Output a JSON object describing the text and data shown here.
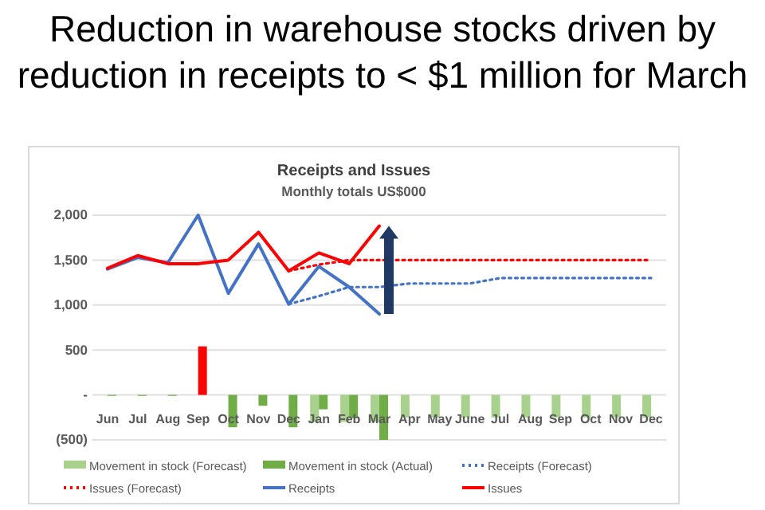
{
  "chart_data": {
    "type": "bar",
    "title": "Reduction in warehouse stocks driven by reduction in receipts to < $1 million for March",
    "subtitle": "Receipts and Issues",
    "annotations": [
      "Monthly totals US$000"
    ],
    "categories": [
      "Jun",
      "Jul",
      "Aug",
      "Sep",
      "Oct",
      "Nov",
      "Dec",
      "Jan",
      "Feb",
      "Mar",
      "Apr",
      "May",
      "June",
      "Jul",
      "Aug",
      "Sep",
      "Oct",
      "Nov",
      "Dec"
    ],
    "series": [
      {
        "name": "Movement in stock (Forecast)",
        "color": "#a9d18e",
        "values": [
          null,
          null,
          null,
          null,
          null,
          null,
          null,
          -300,
          -300,
          -300,
          -250,
          -250,
          -250,
          -250,
          -250,
          -250,
          -250,
          -250,
          -250
        ]
      },
      {
        "name": "Movement in stock (Actual)",
        "color": "#70ad47",
        "colors": [
          "#70ad47",
          "#70ad47",
          "#70ad47",
          "#ff0000",
          "#70ad47",
          "#70ad47",
          "#70ad47",
          "#70ad47",
          "#70ad47",
          "#70ad47",
          null,
          null,
          null,
          null,
          null,
          null,
          null,
          null,
          null
        ],
        "values": [
          -10,
          -10,
          -10,
          540,
          -360,
          -120,
          -360,
          -160,
          -260,
          -500,
          null,
          null,
          null,
          null,
          null,
          null,
          null,
          null,
          null
        ]
      },
      {
        "name": "Receipts (Forecast)",
        "type": "line",
        "line_style": "dotted",
        "color": "#4472c4",
        "values": [
          null,
          null,
          null,
          null,
          null,
          null,
          1010,
          1100,
          1200,
          1200,
          1240,
          1240,
          1240,
          1300,
          1300,
          1300,
          1300,
          1300,
          1300
        ]
      },
      {
        "name": "Issues (Forecast)",
        "type": "line",
        "line_style": "dotted",
        "color": "#ff0000",
        "values": [
          null,
          null,
          null,
          null,
          null,
          null,
          1380,
          1450,
          1500,
          1500,
          1500,
          1500,
          1500,
          1500,
          1500,
          1500,
          1500,
          1500,
          1500
        ]
      },
      {
        "name": "Receipts",
        "type": "line",
        "line_style": "solid",
        "color": "#4472c4",
        "values": [
          1400,
          1530,
          1470,
          2000,
          1130,
          1680,
          1010,
          1430,
          1200,
          900,
          null,
          null,
          null,
          null,
          null,
          null,
          null,
          null,
          null
        ]
      },
      {
        "name": "Issues",
        "type": "line",
        "line_style": "solid",
        "color": "#ff0000",
        "values": [
          1410,
          1550,
          1460,
          1460,
          1500,
          1810,
          1380,
          1580,
          1460,
          1880,
          null,
          null,
          null,
          null,
          null,
          null,
          null,
          null,
          null
        ]
      }
    ],
    "ylim": [
      -500,
      2000
    ],
    "yticks": [
      {
        "value": -500,
        "label": "(500)"
      },
      {
        "value": 0,
        "label": "-"
      },
      500,
      {
        "value": 1000,
        "label": "1,000"
      },
      {
        "value": 1500,
        "label": "1,500"
      },
      {
        "value": 2000,
        "label": "2,000"
      }
    ],
    "grid": "y",
    "legend": "bottom"
  }
}
